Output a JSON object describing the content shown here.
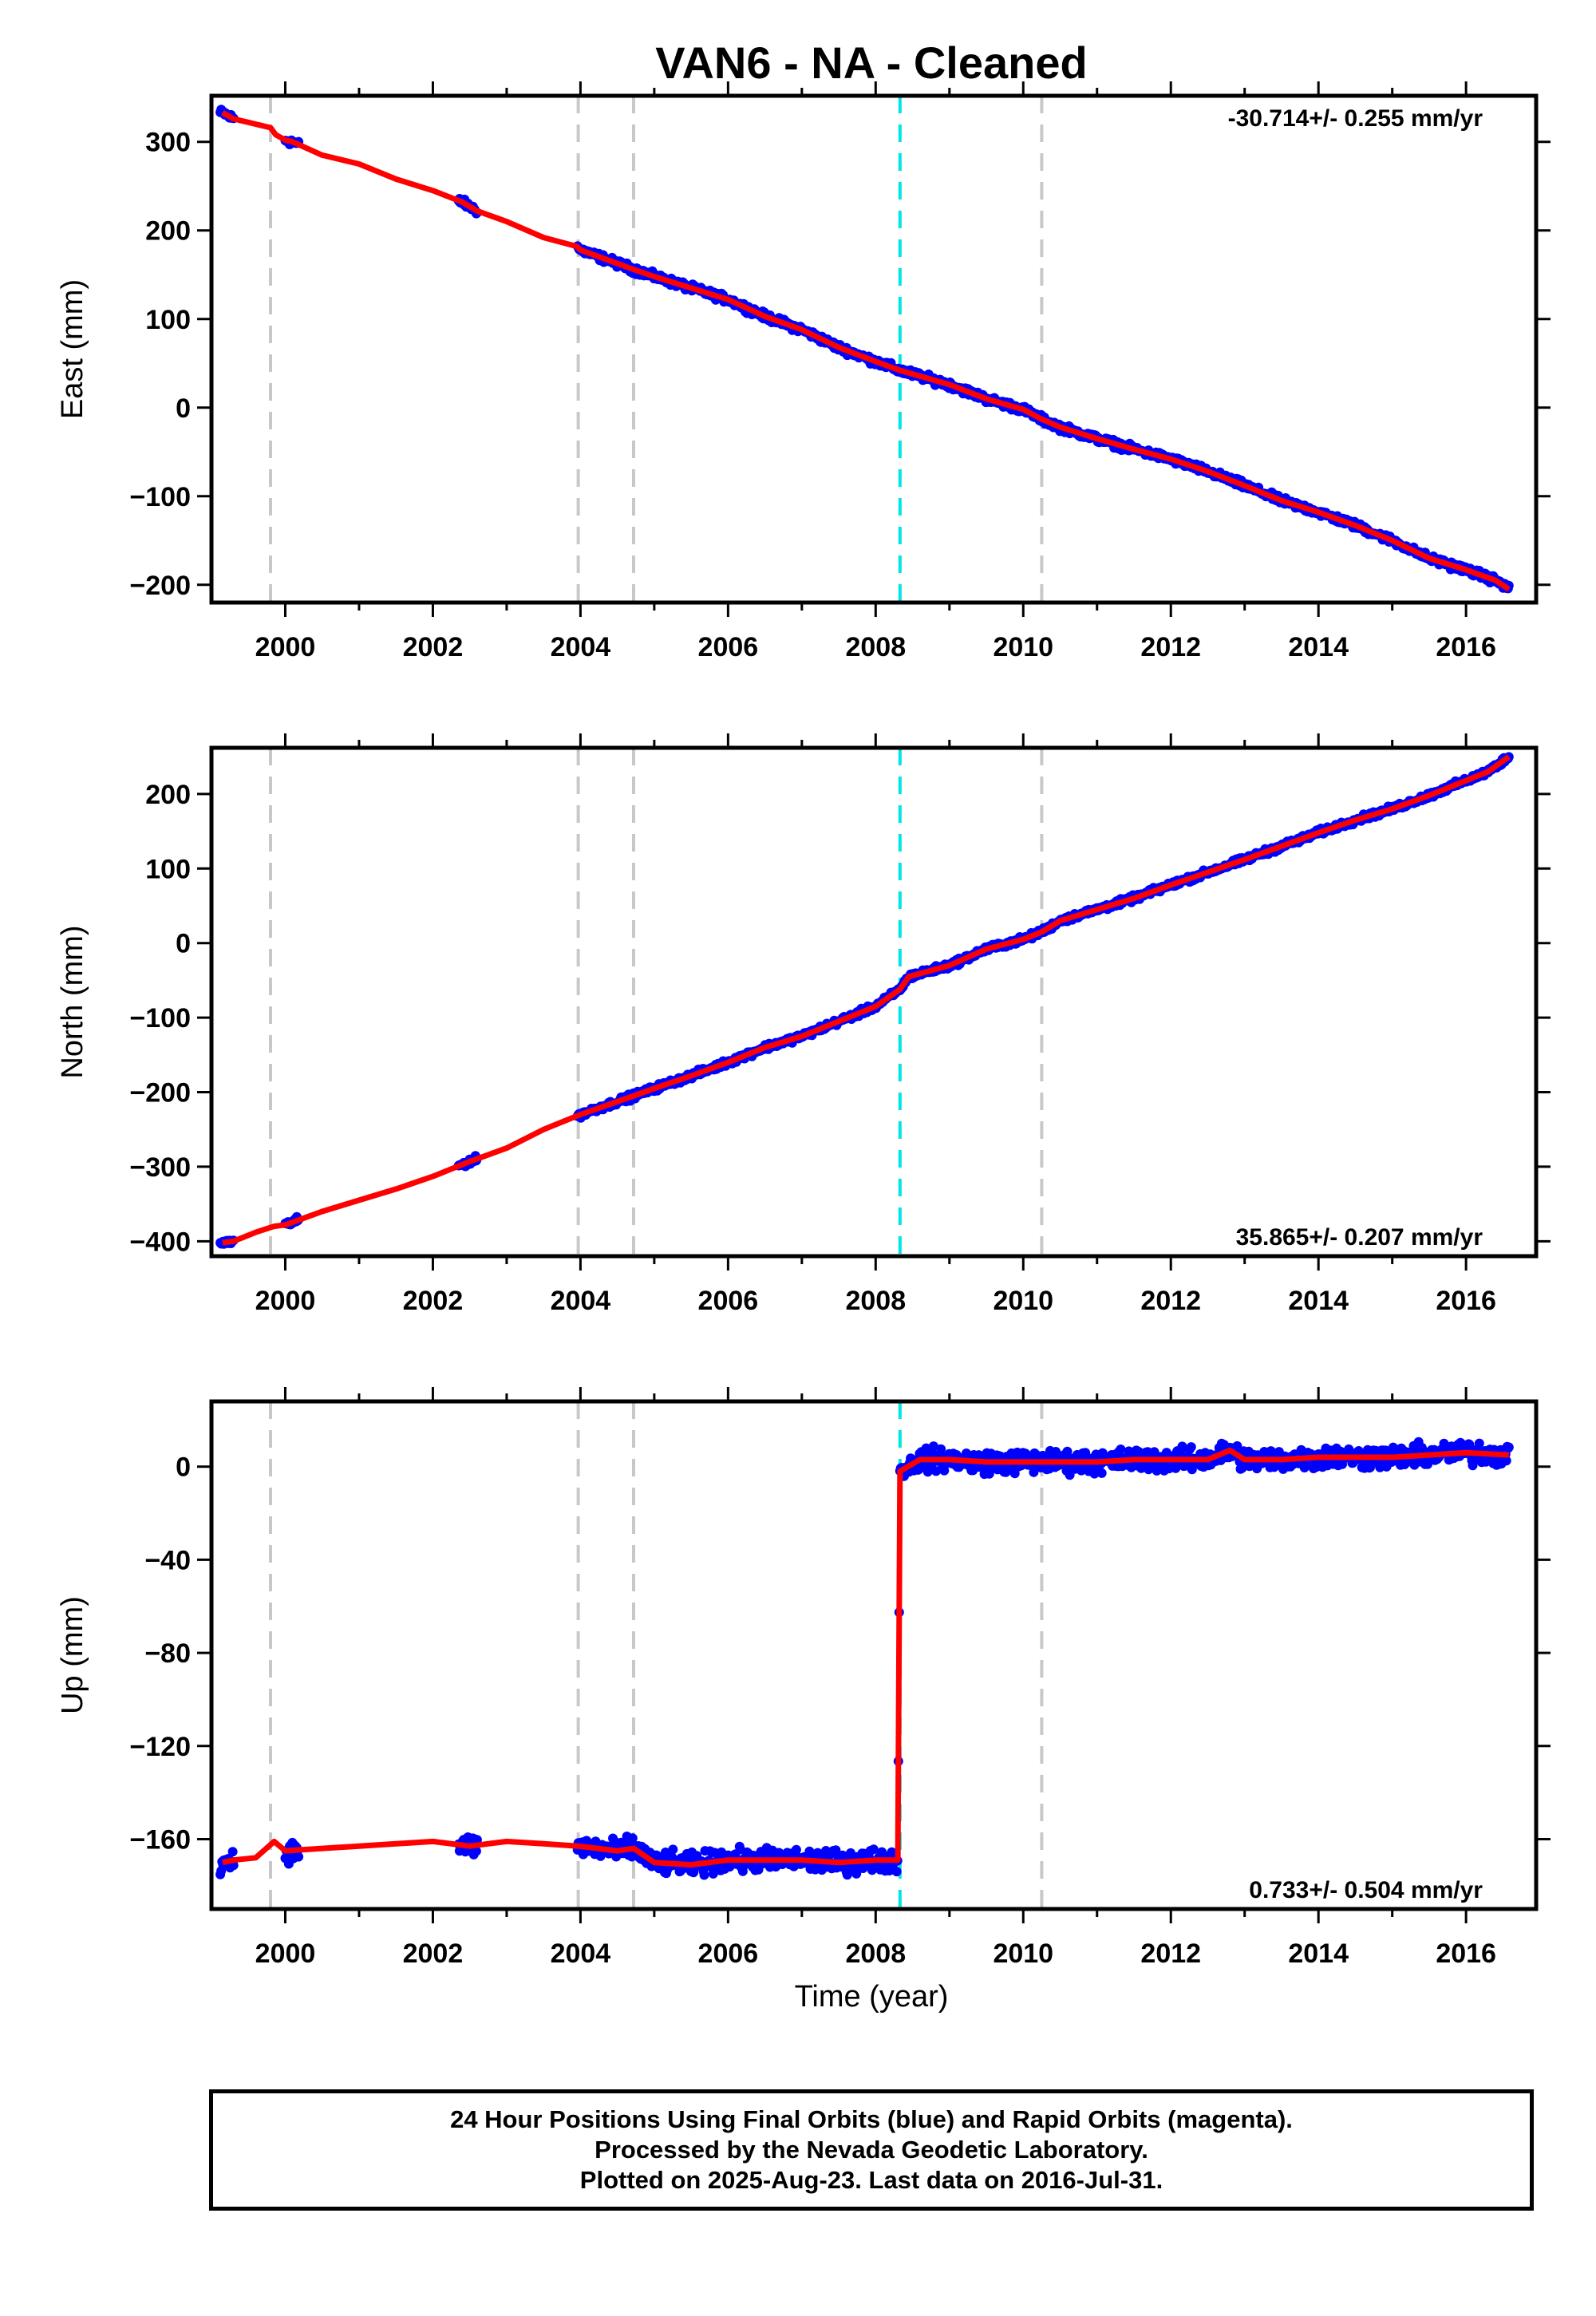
{
  "chart_data": {
    "title": "VAN6  - NA - Cleaned",
    "xlabel": "Time (year)",
    "xlim": [
      1999.0,
      2016.95
    ],
    "x_ticks": [
      2000,
      2002,
      2004,
      2006,
      2008,
      2010,
      2012,
      2014,
      2016
    ],
    "x_tick_labels": [
      "2000",
      "2002",
      "2004",
      "2006",
      "2008",
      "2010",
      "2012",
      "2014",
      "2016"
    ],
    "dashed_lines": [
      {
        "x": 1999.8,
        "color": "#c8c8c8"
      },
      {
        "x": 2003.97,
        "color": "#c8c8c8"
      },
      {
        "x": 2004.72,
        "color": "#c8c8c8"
      },
      {
        "x": 2008.33,
        "color": "#00e5e5"
      },
      {
        "x": 2010.25,
        "color": "#c8c8c8"
      }
    ],
    "colors": {
      "observations": "#0000ff",
      "model": "#ff0000"
    },
    "panels": [
      {
        "type": "scatter",
        "ylabel": "East (mm)",
        "ylim": [
          -220,
          352
        ],
        "y_ticks": [
          -200,
          -100,
          0,
          100,
          200,
          300
        ],
        "y_tick_labels": [
          "−200",
          "−100",
          "0",
          "100",
          "200",
          "300"
        ],
        "rate_text": "-30.714+/- 0.255 mm/yr",
        "rate_position": "top-right",
        "series": [
          {
            "values": [
              [
                1999.15,
                333
              ],
              [
                1999.3,
                326
              ],
              [
                1999.8,
                316
              ],
              [
                1999.87,
                308
              ],
              [
                2000.0,
                302
              ],
              [
                2000.1,
                300
              ],
              [
                2000.5,
                285
              ],
              [
                2001.0,
                275
              ],
              [
                2001.5,
                258
              ],
              [
                2002.0,
                245
              ],
              [
                2002.4,
                232
              ],
              [
                2002.6,
                222
              ],
              [
                2003.0,
                210
              ],
              [
                2003.5,
                192
              ],
              [
                2003.95,
                182
              ],
              [
                2004.0,
                178
              ],
              [
                2004.72,
                156
              ],
              [
                2005.0,
                148
              ],
              [
                2005.5,
                135
              ],
              [
                2006.0,
                122
              ],
              [
                2006.5,
                103
              ],
              [
                2007.0,
                88
              ],
              [
                2007.5,
                68
              ],
              [
                2008.0,
                52
              ],
              [
                2008.33,
                42
              ],
              [
                2009.0,
                26
              ],
              [
                2009.5,
                10
              ],
              [
                2010.0,
                -2
              ],
              [
                2010.25,
                -13
              ],
              [
                2010.5,
                -22
              ],
              [
                2011.0,
                -35
              ],
              [
                2011.5,
                -47
              ],
              [
                2012.0,
                -58
              ],
              [
                2012.5,
                -72
              ],
              [
                2013.0,
                -88
              ],
              [
                2013.5,
                -105
              ],
              [
                2014.0,
                -118
              ],
              [
                2014.5,
                -133
              ],
              [
                2015.0,
                -150
              ],
              [
                2015.5,
                -170
              ],
              [
                2016.0,
                -183
              ],
              [
                2016.4,
                -195
              ],
              [
                2016.58,
                -205
              ]
            ]
          }
        ]
      },
      {
        "type": "scatter",
        "ylabel": "North (mm)",
        "ylim": [
          -420,
          262
        ],
        "y_ticks": [
          -400,
          -300,
          -200,
          -100,
          0,
          100,
          200
        ],
        "y_tick_labels": [
          "−400",
          "−300",
          "−200",
          "−100",
          "0",
          "100",
          "200"
        ],
        "rate_text": "35.865+/- 0.207 mm/yr",
        "rate_position": "bottom-right",
        "series": [
          {
            "values": [
              [
                1999.15,
                -402
              ],
              [
                1999.3,
                -400
              ],
              [
                1999.6,
                -388
              ],
              [
                1999.85,
                -380
              ],
              [
                2000.0,
                -378
              ],
              [
                2000.5,
                -360
              ],
              [
                2001.0,
                -345
              ],
              [
                2001.5,
                -330
              ],
              [
                2002.0,
                -313
              ],
              [
                2002.5,
                -293
              ],
              [
                2003.0,
                -275
              ],
              [
                2003.5,
                -250
              ],
              [
                2004.0,
                -230
              ],
              [
                2004.72,
                -205
              ],
              [
                2005.0,
                -195
              ],
              [
                2005.5,
                -178
              ],
              [
                2006.0,
                -160
              ],
              [
                2006.5,
                -140
              ],
              [
                2007.0,
                -125
              ],
              [
                2007.5,
                -105
              ],
              [
                2008.0,
                -85
              ],
              [
                2008.33,
                -62
              ],
              [
                2008.45,
                -45
              ],
              [
                2009.0,
                -30
              ],
              [
                2009.5,
                -8
              ],
              [
                2010.0,
                5
              ],
              [
                2010.25,
                15
              ],
              [
                2010.5,
                30
              ],
              [
                2011.0,
                45
              ],
              [
                2011.5,
                60
              ],
              [
                2012.0,
                78
              ],
              [
                2012.5,
                95
              ],
              [
                2013.0,
                112
              ],
              [
                2013.5,
                130
              ],
              [
                2014.0,
                148
              ],
              [
                2014.5,
                165
              ],
              [
                2015.0,
                180
              ],
              [
                2015.5,
                198
              ],
              [
                2016.0,
                218
              ],
              [
                2016.3,
                230
              ],
              [
                2016.58,
                250
              ]
            ]
          }
        ]
      },
      {
        "type": "scatter",
        "ylabel": "Up (mm)",
        "ylim": [
          -190,
          28
        ],
        "y_ticks": [
          -160,
          -120,
          -80,
          -40,
          0
        ],
        "y_tick_labels": [
          "−160",
          "−120",
          "−80",
          "−40",
          "0"
        ],
        "rate_text": "0.733+/- 0.504 mm/yr",
        "rate_position": "bottom-right",
        "series": [
          {
            "values": [
              [
                1999.15,
                -170
              ],
              [
                1999.3,
                -169
              ],
              [
                1999.6,
                -168
              ],
              [
                1999.85,
                -161
              ],
              [
                2000.0,
                -165
              ],
              [
                2000.5,
                -164
              ],
              [
                2001.0,
                -163
              ],
              [
                2001.5,
                -162
              ],
              [
                2002.0,
                -161
              ],
              [
                2002.5,
                -163
              ],
              [
                2003.0,
                -161
              ],
              [
                2003.5,
                -162
              ],
              [
                2003.97,
                -163
              ],
              [
                2004.5,
                -165
              ],
              [
                2004.72,
                -164
              ],
              [
                2005.0,
                -170
              ],
              [
                2005.5,
                -171
              ],
              [
                2006.0,
                -169
              ],
              [
                2006.5,
                -169
              ],
              [
                2007.0,
                -169
              ],
              [
                2007.5,
                -170
              ],
              [
                2008.0,
                -169
              ],
              [
                2008.3,
                -169
              ],
              [
                2008.33,
                -2
              ],
              [
                2008.6,
                3
              ],
              [
                2009.0,
                3
              ],
              [
                2009.5,
                2
              ],
              [
                2010.0,
                2
              ],
              [
                2010.5,
                2
              ],
              [
                2011.0,
                2
              ],
              [
                2011.5,
                3
              ],
              [
                2012.0,
                3
              ],
              [
                2012.5,
                3
              ],
              [
                2012.8,
                7
              ],
              [
                2013.0,
                3
              ],
              [
                2013.5,
                3
              ],
              [
                2014.0,
                4
              ],
              [
                2014.5,
                4
              ],
              [
                2015.0,
                4
              ],
              [
                2015.5,
                5
              ],
              [
                2016.0,
                6
              ],
              [
                2016.58,
                5
              ]
            ]
          }
        ]
      }
    ]
  },
  "footer": {
    "line1": "24 Hour Positions Using Final Orbits (blue) and Rapid Orbits (magenta).",
    "line2": "Processed by the Nevada Geodetic Laboratory.",
    "line3": "Plotted on 2025-Aug-23. Last data on 2016-Jul-31."
  }
}
